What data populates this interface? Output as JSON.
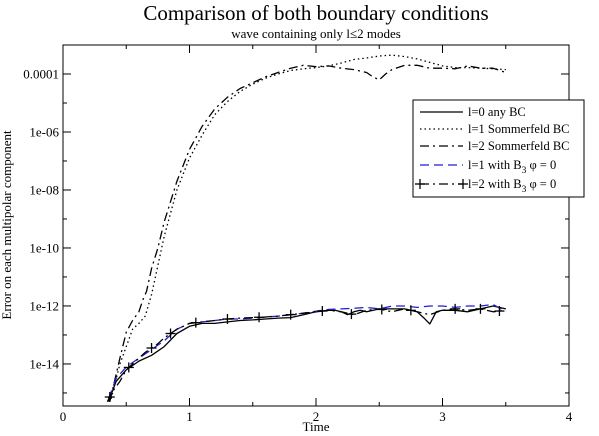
{
  "chart_data": {
    "type": "line",
    "title": "Comparison of both boundary conditions",
    "subtitle": "wave containing only l≤2 modes",
    "xlabel": "Time",
    "ylabel": "Error on each multipolar component",
    "xlim": [
      0,
      4
    ],
    "ylim_log10": [
      -15.45,
      -3.0
    ],
    "y_scale": "log",
    "x_ticks": [
      {
        "value": 0,
        "label": "0"
      },
      {
        "value": 1,
        "label": "1"
      },
      {
        "value": 2,
        "label": "2"
      },
      {
        "value": 3,
        "label": "3"
      },
      {
        "value": 4,
        "label": "4"
      }
    ],
    "y_ticks": [
      {
        "exp": -4,
        "label": "0.0001"
      },
      {
        "exp": -6,
        "label": "1e-06"
      },
      {
        "exp": -8,
        "label": "1e-08"
      },
      {
        "exp": -10,
        "label": "1e-10"
      },
      {
        "exp": -12,
        "label": "1e-12"
      },
      {
        "exp": -14,
        "label": "1e-14"
      }
    ],
    "grid": false,
    "legend_position": "right",
    "legend": [
      {
        "label": "l=0 any BC"
      },
      {
        "label": "l=1 Sommerfeld BC"
      },
      {
        "label": "l=2 Sommerfeld BC"
      },
      {
        "label_parts": [
          "l=1 with B",
          "3",
          " φ = 0"
        ]
      },
      {
        "label_parts": [
          "l=2 with B",
          "3",
          " φ = 0"
        ]
      }
    ],
    "series": [
      {
        "name": "l=0 any BC",
        "color": "#000000",
        "dash": "solid",
        "x": [
          0.36,
          0.42,
          0.5,
          0.6,
          0.7,
          0.8,
          0.9,
          1.0,
          1.1,
          1.2,
          1.3,
          1.4,
          1.5,
          1.6,
          1.7,
          1.8,
          1.9,
          2.0,
          2.1,
          2.15,
          2.2,
          2.25,
          2.3,
          2.35,
          2.4,
          2.5,
          2.6,
          2.7,
          2.8,
          2.85,
          2.9,
          2.95,
          3.0,
          3.1,
          3.2,
          3.3,
          3.4,
          3.5
        ],
        "log10_y": [
          -15.3,
          -14.6,
          -14.2,
          -13.9,
          -13.7,
          -13.4,
          -12.95,
          -12.7,
          -12.6,
          -12.6,
          -12.55,
          -12.5,
          -12.48,
          -12.45,
          -12.42,
          -12.4,
          -12.3,
          -12.2,
          -12.15,
          -12.15,
          -12.2,
          -12.3,
          -12.2,
          -12.15,
          -12.2,
          -12.1,
          -12.1,
          -12.1,
          -12.2,
          -12.4,
          -12.62,
          -12.2,
          -12.15,
          -12.15,
          -12.2,
          -12.1,
          -12.0,
          -12.1
        ]
      },
      {
        "name": "l=1 Sommerfeld BC",
        "color": "#000000",
        "dash": "dotted",
        "x": [
          0.38,
          0.45,
          0.55,
          0.6,
          0.65,
          0.7,
          0.75,
          0.8,
          0.9,
          1.0,
          1.1,
          1.2,
          1.3,
          1.4,
          1.5,
          1.6,
          1.7,
          1.8,
          1.9,
          2.0,
          2.1,
          2.2,
          2.3,
          2.4,
          2.5,
          2.6,
          2.7,
          2.8,
          2.9,
          3.0,
          3.1,
          3.2,
          3.3,
          3.4,
          3.5
        ],
        "log10_y": [
          -15.2,
          -14.0,
          -12.8,
          -12.6,
          -12.35,
          -11.6,
          -10.6,
          -9.6,
          -8.0,
          -6.9,
          -6.1,
          -5.4,
          -4.95,
          -4.6,
          -4.35,
          -4.15,
          -4.0,
          -3.88,
          -3.82,
          -3.78,
          -3.72,
          -3.62,
          -3.5,
          -3.45,
          -3.38,
          -3.35,
          -3.4,
          -3.48,
          -3.6,
          -3.72,
          -3.78,
          -3.78,
          -3.8,
          -3.82,
          -3.85
        ]
      },
      {
        "name": "l=2 Sommerfeld BC",
        "color": "#000000",
        "dash": "dashdot",
        "x": [
          0.37,
          0.45,
          0.5,
          0.55,
          0.6,
          0.63,
          0.66,
          0.7,
          0.75,
          0.8,
          0.9,
          1.0,
          1.1,
          1.2,
          1.3,
          1.4,
          1.5,
          1.6,
          1.7,
          1.8,
          1.9,
          2.0,
          2.1,
          2.2,
          2.3,
          2.4,
          2.45,
          2.5,
          2.55,
          2.6,
          2.7,
          2.8,
          2.9,
          3.0,
          3.1,
          3.2,
          3.3,
          3.4,
          3.5
        ],
        "log10_y": [
          -15.3,
          -13.8,
          -12.9,
          -12.5,
          -12.2,
          -11.8,
          -11.5,
          -10.7,
          -10.0,
          -9.1,
          -7.7,
          -6.6,
          -5.8,
          -5.2,
          -4.8,
          -4.5,
          -4.3,
          -4.1,
          -3.95,
          -3.8,
          -3.7,
          -3.75,
          -3.72,
          -3.8,
          -3.85,
          -3.95,
          -4.1,
          -4.2,
          -4.0,
          -3.85,
          -3.7,
          -3.7,
          -3.8,
          -3.8,
          -3.82,
          -3.72,
          -3.8,
          -3.8,
          -3.95
        ]
      },
      {
        "name": "l=1 with B3 φ = 0",
        "color": "#1f1fd0",
        "dash": "dashed",
        "x": [
          0.36,
          0.42,
          0.5,
          0.6,
          0.7,
          0.8,
          0.9,
          1.0,
          1.1,
          1.2,
          1.3,
          1.4,
          1.5,
          1.6,
          1.7,
          1.8,
          1.9,
          2.0,
          2.1,
          2.2,
          2.3,
          2.4,
          2.5,
          2.6,
          2.7,
          2.8,
          2.9,
          3.0,
          3.1,
          3.2,
          3.3,
          3.4,
          3.5
        ],
        "log10_y": [
          -15.2,
          -14.5,
          -14.1,
          -13.8,
          -13.5,
          -13.2,
          -12.8,
          -12.6,
          -12.55,
          -12.5,
          -12.45,
          -12.45,
          -12.42,
          -12.38,
          -12.35,
          -12.3,
          -12.25,
          -12.18,
          -12.12,
          -12.1,
          -12.08,
          -12.05,
          -12.1,
          -12.0,
          -12.0,
          -12.05,
          -12.0,
          -12.0,
          -12.05,
          -12.0,
          -12.0,
          -11.95,
          -12.2
        ]
      },
      {
        "name": "l=2 with B3 φ = 0",
        "color": "#000000",
        "dash": "dashdot",
        "marker": "plus",
        "x": [
          0.35,
          0.4,
          0.45,
          0.5,
          0.55,
          0.6,
          0.65,
          0.7,
          0.75,
          0.8,
          0.9,
          1.0,
          1.1,
          1.2,
          1.3,
          1.4,
          1.5,
          1.6,
          1.7,
          1.8,
          1.9,
          2.0,
          2.1,
          2.2,
          2.3,
          2.4,
          2.5,
          2.6,
          2.7,
          2.8,
          2.9,
          3.0,
          3.1,
          3.2,
          3.3,
          3.4,
          3.5
        ],
        "log10_y": [
          -15.3,
          -14.9,
          -14.6,
          -14.2,
          -14.0,
          -13.8,
          -13.6,
          -13.45,
          -13.3,
          -13.1,
          -12.8,
          -12.6,
          -12.55,
          -12.5,
          -12.45,
          -12.42,
          -12.4,
          -12.38,
          -12.35,
          -12.3,
          -12.25,
          -12.2,
          -12.15,
          -12.2,
          -12.3,
          -12.15,
          -12.1,
          -12.2,
          -12.1,
          -12.2,
          -12.3,
          -12.15,
          -12.1,
          -12.15,
          -12.1,
          -12.2,
          -12.15
        ],
        "marker_x": [
          0.37,
          0.52,
          0.7,
          0.85,
          1.05,
          1.3,
          1.55,
          1.8,
          2.05,
          2.28,
          2.52,
          2.75,
          3.1,
          3.3,
          3.45
        ]
      }
    ]
  }
}
